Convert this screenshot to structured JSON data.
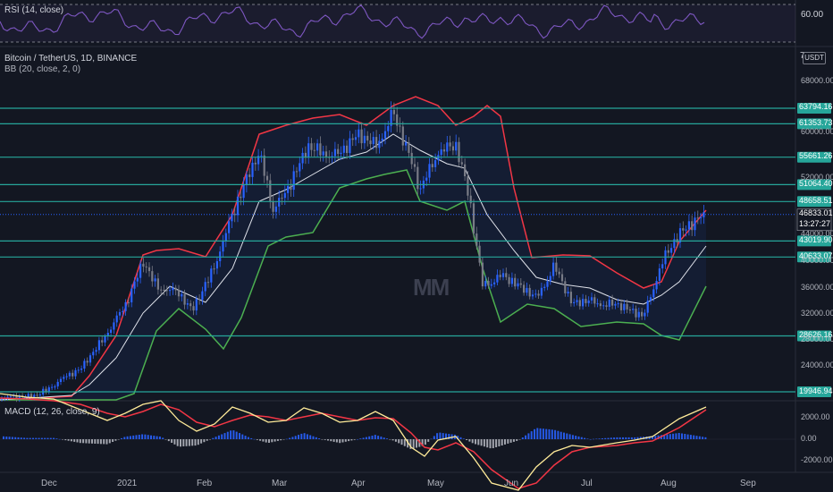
{
  "rsi_panel": {
    "title": "RSI (14, close)",
    "tick_label": "60.00"
  },
  "main_panel": {
    "symbol_line": "Bitcoin / TetherUS, 1D, BINANCE",
    "indicator_line": "BB (20, close, 2, 0)",
    "currency_badge": "USDT",
    "scale_marker": "7",
    "watermark": "MM",
    "axis_ticks": [
      "68000.00",
      "60000.00",
      "52000.00",
      "44000.00",
      "40000.00",
      "36000.00",
      "32000.00",
      "28000.00",
      "24000.00"
    ],
    "level_labels": [
      "63794.16",
      "61353.73",
      "55661.26",
      "51064.40",
      "48658.51",
      "43019.90",
      "40633.07",
      "28626.16",
      "19946.94"
    ],
    "price_badge": "46833.01",
    "countdown": "13:27:27",
    "colors": {
      "level_line": "#26a69a",
      "level_badge": "#26a69a",
      "bb_upper": "#f23645",
      "bb_lower": "#4caf50",
      "bb_basis": "#e0e3eb",
      "candle_up": "#2962ff",
      "candle_down": "#787b86",
      "price_badge": "#2962ff"
    }
  },
  "macd_panel": {
    "title": "MACD (12, 26, close, 9)",
    "axis_ticks": [
      "2000.00",
      "0.00",
      "-2000.00"
    ]
  },
  "x_axis": {
    "labels": [
      "Dec",
      "2021",
      "Feb",
      "Mar",
      "Apr",
      "May",
      "Jun",
      "Jul",
      "Aug",
      "Sep"
    ]
  },
  "chart_data": {
    "type": "line",
    "title": "Bitcoin / TetherUS, 1D, BINANCE",
    "x": [
      "Dec",
      "2021",
      "Feb",
      "Mar",
      "Apr",
      "May",
      "Jun",
      "Jul",
      "Aug",
      "Sep"
    ],
    "price_close_approx": [
      18800,
      29000,
      33500,
      49000,
      58800,
      57000,
      36500,
      35000,
      39500,
      46833
    ],
    "horizontal_levels": [
      63794.16,
      61353.73,
      55661.26,
      51064.4,
      48658.51,
      43019.9,
      40633.07,
      28626.16,
      19946.94
    ],
    "last_price": 46833.01,
    "ylim": [
      17000,
      70000
    ],
    "indicators": [
      "BB (20, close, 2, 0)",
      "RSI (14, close)",
      "MACD (12, 26, close, 9)"
    ],
    "macd_ylim": [
      -3000,
      3000
    ],
    "grid": true
  }
}
